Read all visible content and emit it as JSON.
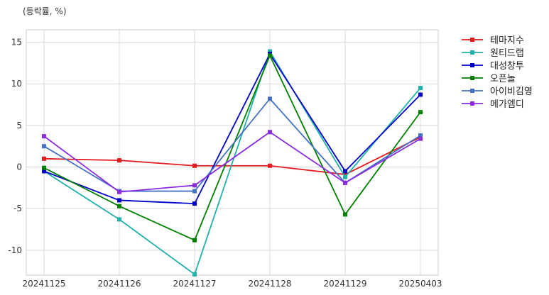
{
  "chart_data": {
    "type": "line",
    "unit_label": "(등락률, %)",
    "categories": [
      "20241125",
      "20241126",
      "20241127",
      "20241128",
      "20241129",
      "20250403"
    ],
    "ylim": [
      -13,
      16.5
    ],
    "yticks": [
      -10,
      -5,
      0,
      5,
      10,
      15
    ],
    "grid": true,
    "legend_position": "top-right outside",
    "series": [
      {
        "name": "테마지수",
        "color": "#e41a1c",
        "values": [
          1.0,
          0.8,
          0.15,
          0.15,
          -0.9,
          3.6
        ]
      },
      {
        "name": "원티드랩",
        "color": "#20b2aa",
        "values": [
          -0.5,
          -6.3,
          -12.9,
          13.9,
          -1.2,
          9.5
        ]
      },
      {
        "name": "대성창투",
        "color": "#0000cd",
        "values": [
          -0.5,
          -4.0,
          -4.4,
          13.6,
          -0.5,
          8.7
        ]
      },
      {
        "name": "오픈놀",
        "color": "#008000",
        "values": [
          -0.1,
          -4.7,
          -8.8,
          13.4,
          -5.7,
          6.6
        ]
      },
      {
        "name": "아이비김영",
        "color": "#4472c4",
        "values": [
          2.5,
          -2.9,
          -2.9,
          8.2,
          -1.9,
          3.8
        ]
      },
      {
        "name": "메가엠디",
        "color": "#8a2be2",
        "values": [
          3.7,
          -3.0,
          -2.2,
          4.2,
          -1.9,
          3.4
        ]
      }
    ]
  }
}
